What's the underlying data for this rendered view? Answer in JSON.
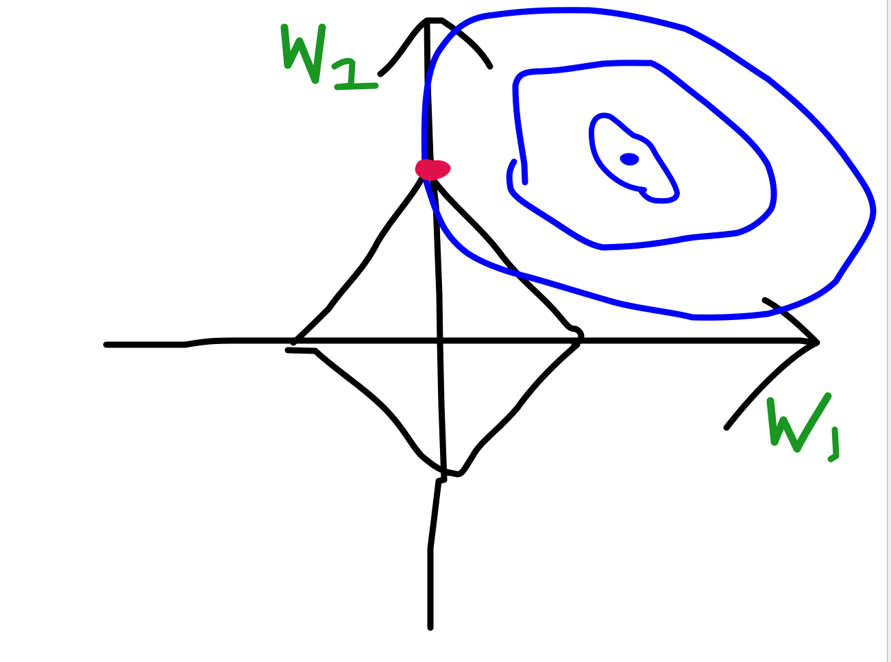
{
  "diagram": {
    "labels": {
      "vertical_axis": "W2",
      "horizontal_axis": "W1"
    },
    "colors": {
      "axes": "#000000",
      "constraint": "#000000",
      "contours": "#0000ff",
      "labels": "#1a9622",
      "solution_point": "#e0104d",
      "background": "#ffffff"
    },
    "elements": {
      "constraint_shape": "diamond",
      "contour_count": 3,
      "has_minimum_point": true,
      "has_solution_point": true
    }
  }
}
